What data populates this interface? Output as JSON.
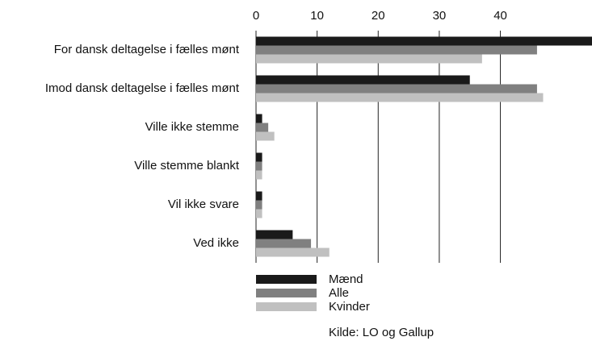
{
  "chart_data": {
    "type": "bar",
    "orientation": "horizontal",
    "categories": [
      "For dansk deltagelse i fælles mønt",
      "Imod dansk deltagelse i fælles mønt",
      "Ville ikke stemme",
      "Ville stemme blankt",
      "Vil ikke svare",
      "Ved ikke"
    ],
    "series": [
      {
        "name": "Mænd",
        "color": "#1a1a1a",
        "values": [
          55,
          35,
          1,
          1,
          1,
          6
        ]
      },
      {
        "name": "Alle",
        "color": "#808080",
        "values": [
          46,
          46,
          2,
          1,
          1,
          9
        ]
      },
      {
        "name": "Kvinder",
        "color": "#c0c0c0",
        "values": [
          37,
          47,
          3,
          1,
          1,
          12
        ]
      }
    ],
    "xlim": [
      0,
      55
    ],
    "xticks": [
      0,
      10,
      20,
      30,
      40
    ],
    "grid": true,
    "annotation": "Kilde: LO og Gallup"
  }
}
